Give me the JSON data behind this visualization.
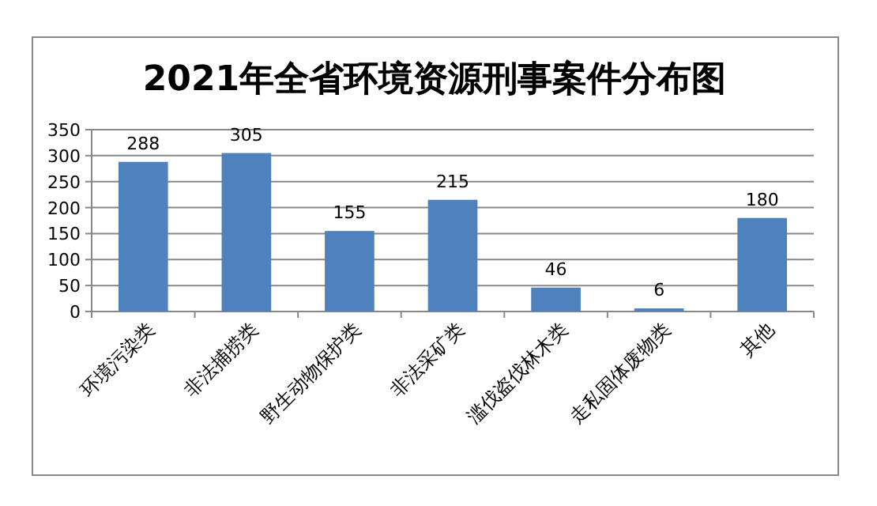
{
  "chart_data": {
    "type": "bar",
    "title": "2021年全省环境资源刑事案件分布图",
    "categories": [
      "环境污染类",
      "非法捕捞类",
      "野生动物保护类",
      "非法采矿类",
      "滥伐盗伐林木类",
      "走私固体废物类",
      "其他"
    ],
    "values": [
      288,
      305,
      155,
      215,
      46,
      6,
      180
    ],
    "color": "#4f81bd",
    "ylim": [
      0,
      350
    ],
    "yticks": [
      0,
      50,
      100,
      150,
      200,
      250,
      300,
      350
    ],
    "grid": "y",
    "data_labels": true
  }
}
